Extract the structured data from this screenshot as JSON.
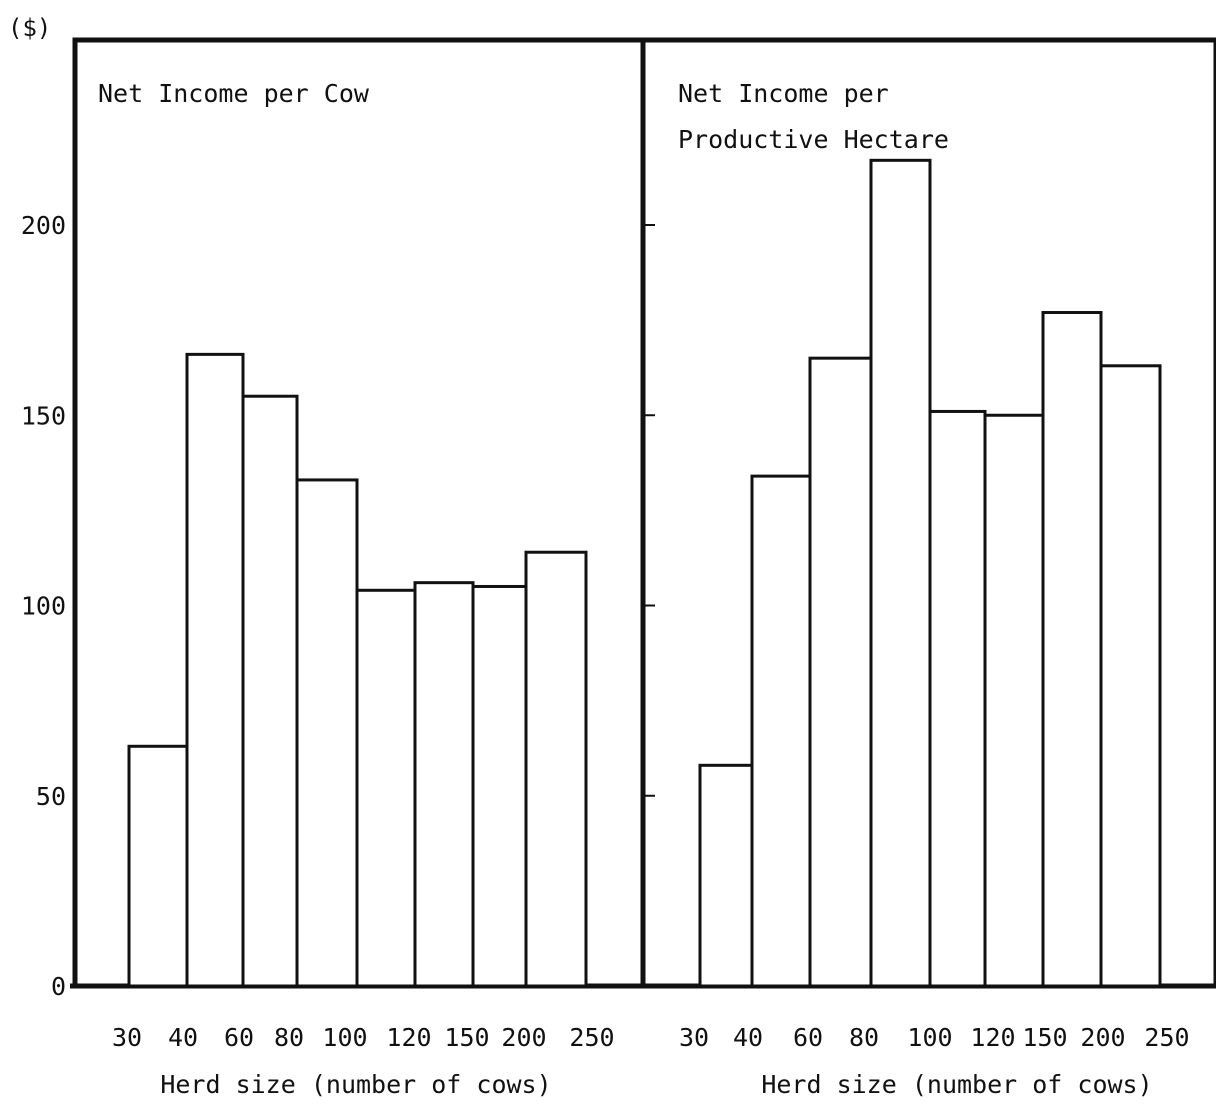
{
  "chart_data": {
    "type": "bar",
    "unit_label": "($)",
    "ylim": [
      0,
      250
    ],
    "y_ticks": [
      0,
      50,
      100,
      150,
      200
    ],
    "panels": [
      {
        "title_lines": [
          "Net Income per Cow"
        ],
        "xlabel": "Herd size (number of cows)",
        "bin_edges": [
          "30",
          "40",
          "60",
          "80",
          "100",
          "120",
          "150",
          "200",
          "250"
        ],
        "values": [
          63,
          166,
          155,
          133,
          104,
          106,
          105,
          114
        ]
      },
      {
        "title_lines": [
          "Net Income per",
          "Productive Hectare"
        ],
        "xlabel": "Herd size (number of cows)",
        "bin_edges": [
          "30",
          "40",
          "60",
          "80",
          "100",
          "120",
          "150",
          "200",
          "250"
        ],
        "values": [
          58,
          134,
          165,
          217,
          151,
          150,
          177,
          163
        ]
      }
    ]
  }
}
